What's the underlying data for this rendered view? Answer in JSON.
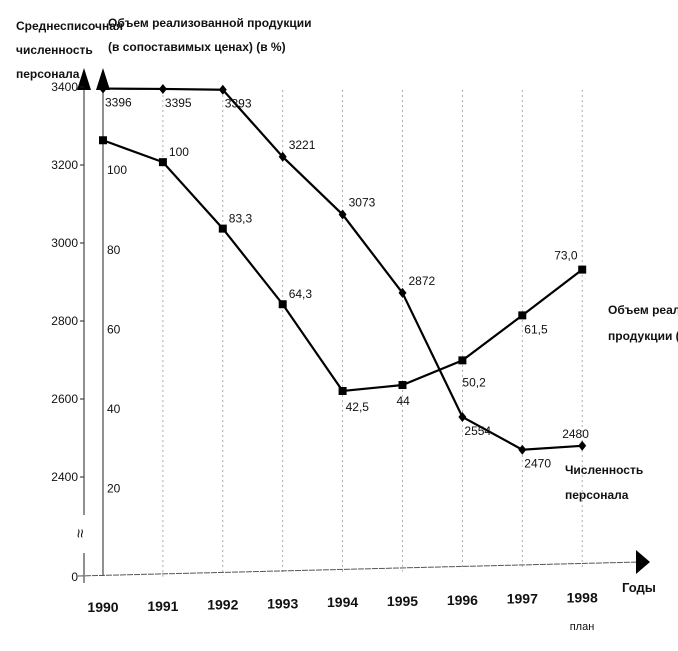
{
  "chart_data": {
    "type": "line",
    "left_axis_title": [
      "Среднесписочная",
      "численность",
      "персонала"
    ],
    "right_axis_title": [
      "Объем реализованной продукции",
      "(в сопоставимых ценах) (в %)"
    ],
    "xlabel": "Годы",
    "categories": [
      "1990",
      "1991",
      "1992",
      "1993",
      "1994",
      "1995",
      "1996",
      "1997",
      "1998"
    ],
    "category_note": "план",
    "left_ticks": [
      "3400",
      "3200",
      "3000",
      "2800",
      "2600",
      "2400",
      "0"
    ],
    "left_tick_values": [
      3400,
      3200,
      3000,
      2800,
      2600,
      2400
    ],
    "right_ticks": [
      "100",
      "80",
      "60",
      "40",
      "20"
    ],
    "right_tick_values": [
      100,
      80,
      60,
      40,
      20
    ],
    "axis_break_symbol": "≈",
    "series": [
      {
        "name": "Численность персонала",
        "legend": [
          "Численность",
          "персонала"
        ],
        "axis": "left",
        "marker": "diamond",
        "values": [
          3396,
          3395,
          3393,
          3221,
          3073,
          2872,
          2554,
          2470,
          2480
        ],
        "labels": [
          "3396",
          "3395",
          "3393",
          "3221",
          "3073",
          "2872",
          "2554",
          "2470",
          "2480"
        ]
      },
      {
        "name": "Объем реализованной продукции (в%)",
        "legend": [
          "Объем реализованной",
          "продукции (в%)"
        ],
        "axis": "right",
        "marker": "square",
        "values": [
          105.5,
          100,
          83.3,
          64.3,
          42.5,
          44,
          50.2,
          61.5,
          73.0
        ],
        "labels": [
          "",
          "100",
          "83,3",
          "64,3",
          "42,5",
          "44",
          "50,2",
          "61,5",
          "73,0"
        ]
      }
    ],
    "grid": "vertical dashed lines at each year"
  }
}
